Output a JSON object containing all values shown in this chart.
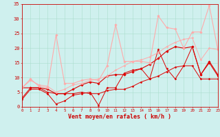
{
  "x": [
    0,
    1,
    2,
    3,
    4,
    5,
    6,
    7,
    8,
    9,
    10,
    11,
    12,
    13,
    14,
    15,
    16,
    17,
    18,
    19,
    20,
    21,
    22,
    23
  ],
  "series": [
    {
      "y": [
        6.5,
        6.5,
        6.5,
        6.0,
        4.5,
        4.5,
        6.0,
        7.5,
        8.5,
        8.0,
        10.5,
        11.0,
        11.0,
        12.0,
        13.0,
        14.5,
        16.5,
        19.0,
        20.5,
        20.0,
        20.5,
        11.0,
        15.5,
        11.0
      ],
      "color": "#dd0000",
      "lw": 0.8,
      "marker": "D",
      "ms": 1.8
    },
    {
      "y": [
        2.5,
        6.0,
        6.0,
        4.5,
        1.0,
        2.0,
        4.0,
        4.5,
        5.0,
        0.5,
        6.5,
        6.5,
        11.5,
        12.5,
        13.0,
        9.5,
        19.5,
        13.0,
        9.5,
        14.0,
        20.5,
        11.0,
        15.0,
        10.5
      ],
      "color": "#dd0000",
      "lw": 0.7,
      "marker": "D",
      "ms": 1.5
    },
    {
      "y": [
        3.0,
        6.5,
        6.5,
        5.0,
        4.5,
        4.5,
        4.5,
        5.0,
        4.5,
        4.5,
        5.5,
        6.0,
        6.0,
        7.0,
        8.5,
        9.5,
        10.5,
        12.0,
        13.5,
        14.0,
        14.0,
        9.5,
        9.5,
        9.5
      ],
      "color": "#dd0000",
      "lw": 0.7,
      "marker": "D",
      "ms": 1.5
    },
    {
      "y": [
        6.5,
        9.5,
        7.0,
        6.5,
        24.5,
        8.0,
        8.0,
        9.0,
        9.5,
        9.0,
        14.0,
        28.0,
        15.5,
        15.5,
        15.5,
        15.0,
        31.0,
        27.0,
        26.5,
        20.0,
        25.5,
        25.5,
        34.5,
        19.5
      ],
      "color": "#ffaaaa",
      "lw": 0.8,
      "marker": "D",
      "ms": 1.8
    },
    {
      "y": [
        6.5,
        9.0,
        7.5,
        7.0,
        5.0,
        6.0,
        7.5,
        8.0,
        9.0,
        9.5,
        10.5,
        12.5,
        14.0,
        15.5,
        16.0,
        17.0,
        18.5,
        20.5,
        22.0,
        23.0,
        23.5,
        16.0,
        20.0,
        19.5
      ],
      "color": "#ffaaaa",
      "lw": 0.7,
      "marker": "D",
      "ms": 1.5
    }
  ],
  "xlabel": "Vent moyen/en rafales ( km/h )",
  "xlim": [
    0,
    23
  ],
  "ylim": [
    0,
    35
  ],
  "yticks": [
    0,
    5,
    10,
    15,
    20,
    25,
    30,
    35
  ],
  "xticks": [
    0,
    1,
    2,
    3,
    4,
    5,
    6,
    7,
    8,
    9,
    10,
    11,
    12,
    13,
    14,
    15,
    16,
    17,
    18,
    19,
    20,
    21,
    22,
    23
  ],
  "bg_color": "#cff0ee",
  "grid_color": "#aaddcc",
  "tick_color": "#cc0000",
  "label_color": "#cc0000"
}
